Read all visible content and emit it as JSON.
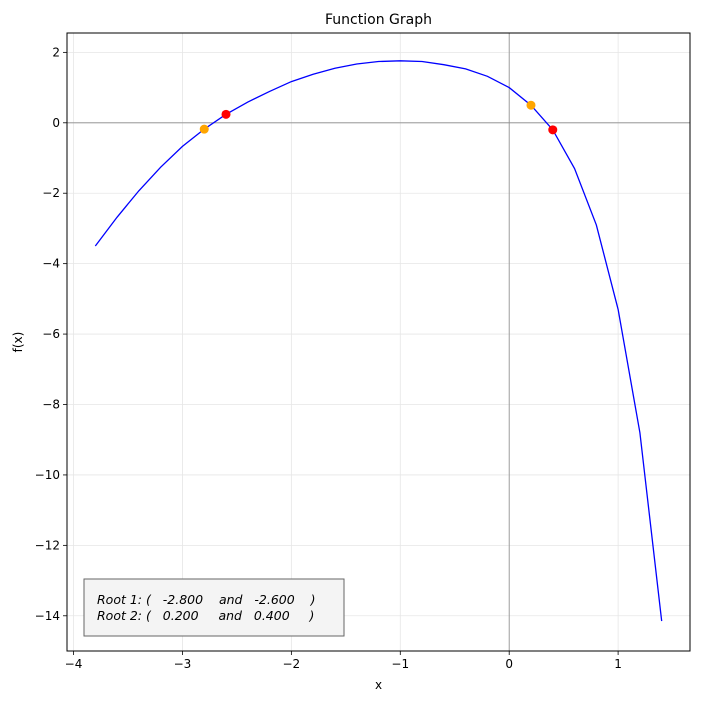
{
  "chart_data": {
    "type": "line",
    "title": "Function Graph",
    "xlabel": "x",
    "ylabel": "f(x)",
    "xlim": [
      -4.06,
      1.66
    ],
    "ylim": [
      -15.0,
      2.55
    ],
    "grid": true,
    "x_ticks": [
      -4,
      -3,
      -2,
      -1,
      0,
      1
    ],
    "x_tick_labels": [
      "−4",
      "−3",
      "−2",
      "−1",
      "0",
      "1"
    ],
    "y_ticks": [
      2,
      0,
      -2,
      -4,
      -6,
      -8,
      -10,
      -12,
      -14
    ],
    "y_tick_labels": [
      "2",
      "0",
      "−2",
      "−4",
      "−6",
      "−8",
      "−10",
      "−12",
      "−14"
    ],
    "reference_lines": {
      "x": 0,
      "y": 0
    },
    "curve": {
      "color": "#0000ff",
      "x": [
        -3.8,
        -3.6,
        -3.4,
        -3.2,
        -3.0,
        -2.8,
        -2.6,
        -2.4,
        -2.2,
        -2.0,
        -1.8,
        -1.6,
        -1.4,
        -1.2,
        -1.0,
        -0.8,
        -0.6,
        -0.4,
        -0.2,
        0.0,
        0.2,
        0.4,
        0.6,
        0.8,
        1.0,
        1.2,
        1.4
      ],
      "y": [
        -3.5,
        -2.68,
        -1.93,
        -1.26,
        -0.67,
        -0.18,
        0.24,
        0.59,
        0.89,
        1.17,
        1.38,
        1.55,
        1.67,
        1.74,
        1.76,
        1.74,
        1.65,
        1.53,
        1.32,
        1.0,
        0.5,
        -0.2,
        -1.3,
        -2.9,
        -5.3,
        -8.8,
        -14.15
      ]
    },
    "points": [
      {
        "x": -2.8,
        "y": -0.18,
        "color": "#ffa500"
      },
      {
        "x": -2.6,
        "y": 0.24,
        "color": "#ff0000"
      },
      {
        "x": 0.2,
        "y": 0.5,
        "color": "#ffa500"
      },
      {
        "x": 0.4,
        "y": -0.2,
        "color": "#ff0000"
      }
    ],
    "annotation": {
      "lines": [
        "Root 1: (   -2.800    and   -2.600    )",
        "Root 2: (   0.200     and   0.400     )"
      ],
      "box_fill": "#f4f4f4",
      "box_edge": "#666666"
    }
  }
}
